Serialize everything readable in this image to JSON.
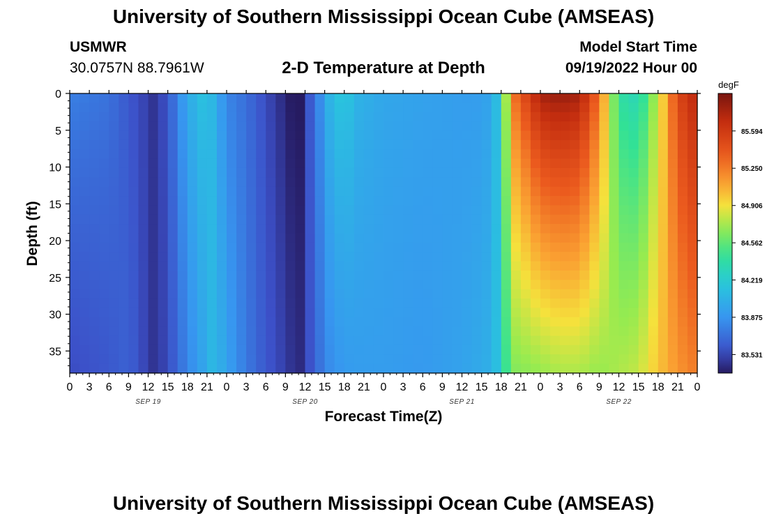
{
  "header": {
    "title": "University of Southern Mississippi Ocean Cube (AMSEAS)",
    "station": "USMWR",
    "coordinates": "30.0757N  88.7961W",
    "subtitle": "2-D Temperature at Depth",
    "model_start_label": "Model Start Time",
    "model_start_value": "09/19/2022 Hour 00"
  },
  "footer": {
    "title_repeat": "University of Southern Mississippi Ocean Cube (AMSEAS)"
  },
  "chart_data": {
    "type": "heatmap",
    "title": "2-D Temperature at Depth",
    "xlabel": "Forecast Time(Z)",
    "ylabel": "Depth (ft)",
    "x_ticks": [
      "0",
      "3",
      "6",
      "9",
      "12",
      "15",
      "18",
      "21",
      "0",
      "3",
      "6",
      "9",
      "12",
      "15",
      "18",
      "21",
      "0",
      "3",
      "6",
      "9",
      "12",
      "15",
      "18",
      "21",
      "0",
      "3",
      "6",
      "9",
      "12",
      "15",
      "18",
      "21",
      "0"
    ],
    "date_labels": [
      "SEP 19",
      "SEP 20",
      "SEP 21",
      "SEP 22"
    ],
    "y_ticks": [
      0,
      5,
      10,
      15,
      20,
      25,
      30,
      35
    ],
    "ylim": [
      0,
      38
    ],
    "xlim_hours": [
      0,
      96
    ],
    "colorbar": {
      "unit": "degF",
      "ticks": [
        "83.531",
        "83.875",
        "84.219",
        "84.562",
        "84.906",
        "85.250",
        "85.594"
      ],
      "range": [
        83.36,
        85.94
      ]
    },
    "x_hours": [
      0,
      6,
      9,
      12,
      13,
      15,
      18,
      21,
      22,
      24,
      27,
      30,
      33,
      35,
      36,
      38,
      40,
      42,
      44,
      48,
      54,
      60,
      63,
      65,
      66,
      68,
      72,
      75,
      78,
      81,
      84,
      87,
      90,
      93,
      96
    ],
    "temperature_surface": [
      83.78,
      83.72,
      83.6,
      83.5,
      83.45,
      83.6,
      84.0,
      84.18,
      84.05,
      83.8,
      83.7,
      83.55,
      83.4,
      83.3,
      83.5,
      83.8,
      84.1,
      84.2,
      84.05,
      83.98,
      83.95,
      83.92,
      83.92,
      84.0,
      84.4,
      85.3,
      85.8,
      85.85,
      85.8,
      85.3,
      84.4,
      84.3,
      84.8,
      85.5,
      85.75
    ],
    "temperature_bottom": [
      83.55,
      83.6,
      83.65,
      83.5,
      83.45,
      83.55,
      83.8,
      84.0,
      84.1,
      83.95,
      83.75,
      83.6,
      83.5,
      83.4,
      83.5,
      83.7,
      83.85,
      83.9,
      83.92,
      83.92,
      83.9,
      83.95,
      84.0,
      84.05,
      84.35,
      84.65,
      84.7,
      84.75,
      84.75,
      84.7,
      84.75,
      84.8,
      85.0,
      85.15,
      85.25
    ],
    "grid": false,
    "legend": "colorbar right"
  }
}
